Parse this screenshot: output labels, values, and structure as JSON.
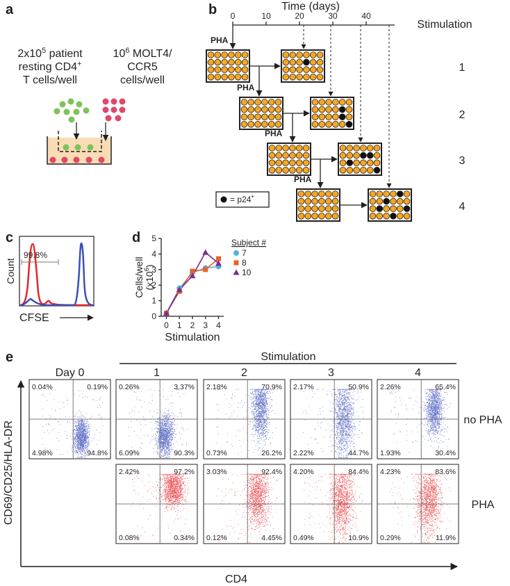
{
  "panel_a": {
    "label": "a",
    "left_lines": [
      {
        "text": "2x10",
        "sup": "5",
        "after": " patient"
      },
      {
        "text": "resting CD4",
        "sup": "+"
      },
      {
        "text": "T cells/well"
      }
    ],
    "right_lines": [
      {
        "text": "10",
        "sup": "6",
        "after": " MOLT4/"
      },
      {
        "text": "CCR5"
      },
      {
        "text": "cells/well"
      }
    ]
  },
  "panel_b": {
    "label": "b",
    "axis_title": "Time (days)",
    "ticks": [
      0,
      10,
      20,
      30,
      40
    ],
    "stim_title": "Stimulation",
    "stims": [
      "1",
      "2",
      "3",
      "4"
    ],
    "pha": "PHA",
    "legend": {
      "text": "= p24",
      "sup": "+"
    }
  },
  "panel_c": {
    "label": "c",
    "gate": "99.8%",
    "y_label": "Count",
    "x_label": "CFSE"
  },
  "panel_d": {
    "label": "d",
    "type": "line",
    "y_label": "Cells/well",
    "y_unit": {
      "text": "(x10",
      "sup": "6",
      "after": ")"
    },
    "x_label": "Stimulation",
    "x": [
      0,
      1,
      2,
      3,
      4
    ],
    "xticks": [
      0,
      1,
      2,
      3,
      4
    ],
    "xlim": [
      -0.4,
      4.4
    ],
    "ylim": [
      0,
      5
    ],
    "yticks": [
      0,
      1,
      2,
      3,
      4,
      5
    ],
    "legend_title": "Subject #",
    "series": [
      {
        "name": "7",
        "color": "#5aaee0",
        "marker": "circle",
        "values": [
          0.2,
          1.8,
          2.8,
          3.1,
          3.2
        ]
      },
      {
        "name": "8",
        "color": "#e8602c",
        "marker": "square",
        "values": [
          0.2,
          1.6,
          2.9,
          3.0,
          3.7
        ]
      },
      {
        "name": "10",
        "color": "#7b2c8e",
        "marker": "triangle",
        "values": [
          0.2,
          1.7,
          2.6,
          4.1,
          3.4
        ]
      }
    ]
  },
  "panel_e": {
    "label": "e",
    "header": "Stimulation",
    "columns": [
      "Day 0",
      "1",
      "2",
      "3",
      "4"
    ],
    "y_label": "CD69/CD25/HLA-DR",
    "x_label": "CD4",
    "rows": [
      {
        "name": "no PHA",
        "color": "#3b4fb8",
        "plots": [
          [
            "0.04%",
            "0.19%",
            "4.98%",
            "94.8%"
          ],
          [
            "0.26%",
            "3.37%",
            "6.09%",
            "90.3%"
          ],
          [
            "2.18%",
            "70.9%",
            "0.73%",
            "26.2%"
          ],
          [
            "2.17%",
            "50.9%",
            "2.22%",
            "44.7%"
          ],
          [
            "2.26%",
            "65.4%",
            "1.93%",
            "30.4%"
          ]
        ]
      },
      {
        "name": "PHA",
        "color": "#e3262b",
        "plots": [
          [
            "2.42%",
            "97.2%",
            "0.08%",
            "0.34%"
          ],
          [
            "3.03%",
            "92.4%",
            "0.12%",
            "4.45%"
          ],
          [
            "4.20%",
            "84.4%",
            "0.49%",
            "10.9%"
          ],
          [
            "4.23%",
            "83.6%",
            "0.29%",
            "11.9%"
          ]
        ]
      }
    ]
  }
}
